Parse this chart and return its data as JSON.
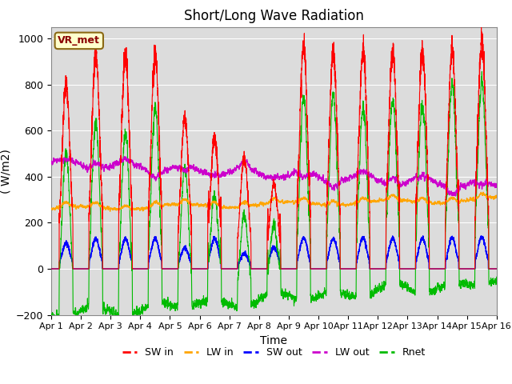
{
  "title": "Short/Long Wave Radiation",
  "xlabel": "Time",
  "ylabel": "( W/m2)",
  "ylim": [
    -200,
    1050
  ],
  "yticks": [
    -200,
    0,
    200,
    400,
    600,
    800,
    1000
  ],
  "xlim": [
    0,
    15
  ],
  "xtick_labels": [
    "Apr 1",
    "Apr 2",
    "Apr 3",
    "Apr 4",
    "Apr 5",
    "Apr 6",
    "Apr 7",
    "Apr 8",
    "Apr 9",
    "Apr 10",
    "Apr 11",
    "Apr 12",
    "Apr 13",
    "Apr 14",
    "Apr 15",
    "Apr 16"
  ],
  "annotation": "VR_met",
  "bg_color": "#dcdcdc",
  "legend": [
    {
      "label": "SW in",
      "color": "#ff0000"
    },
    {
      "label": "LW in",
      "color": "#ffa500"
    },
    {
      "label": "SW out",
      "color": "#0000ff"
    },
    {
      "label": "LW out",
      "color": "#cc00cc"
    },
    {
      "label": "Rnet",
      "color": "#00bb00"
    }
  ],
  "title_fontsize": 12,
  "axis_fontsize": 10,
  "legend_fontsize": 9
}
